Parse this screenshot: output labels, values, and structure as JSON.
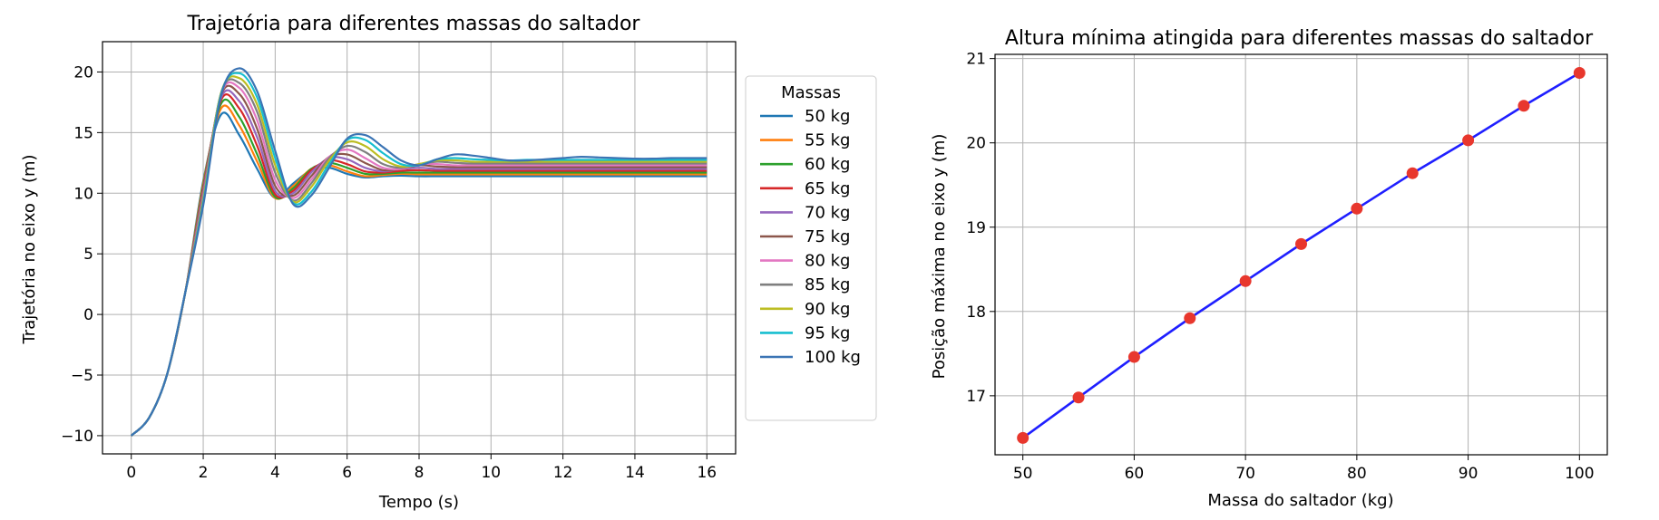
{
  "chart_data": [
    {
      "type": "line",
      "title": "Trajetória para diferentes massas do saltador",
      "xlabel": "Tempo (s)",
      "ylabel": "Trajetória  no eixo y (m)",
      "xlim": [
        -0.8,
        16.8
      ],
      "ylim": [
        -11.5,
        22.5
      ],
      "xticks": [
        0,
        2,
        4,
        6,
        8,
        10,
        12,
        14,
        16
      ],
      "yticks": [
        -10,
        -5,
        0,
        5,
        10,
        15,
        20
      ],
      "xtick_labels": [
        "0",
        "2",
        "4",
        "6",
        "8",
        "10",
        "12",
        "14",
        "16"
      ],
      "ytick_labels": [
        "−10",
        "−5",
        "0",
        "5",
        "10",
        "15",
        "20"
      ],
      "grid": true,
      "legend": {
        "title": "Massas",
        "placement": "outside-right"
      },
      "x": [
        0,
        0.5,
        1,
        1.5,
        2,
        2.5,
        3,
        3.5,
        4,
        4.5,
        5,
        5.5,
        6,
        6.5,
        7,
        7.5,
        8,
        8.5,
        9,
        9.5,
        10,
        10.5,
        11,
        11.5,
        12,
        12.5,
        13,
        13.5,
        14,
        14.5,
        15,
        15.5,
        16
      ],
      "series": [
        {
          "name": "50 kg",
          "color": "#1f77b4",
          "peak": 16.5,
          "peak_t": 2.45,
          "settle": 11.4,
          "values": [
            -10,
            -8.5,
            -4.9,
            1.8,
            11.0,
            16.5,
            14.8,
            12.0,
            9.6,
            10.8,
            11.9,
            12.1,
            11.6,
            11.3,
            11.4,
            11.45,
            11.4,
            11.4,
            11.4,
            11.4,
            11.4,
            11.4,
            11.4,
            11.4,
            11.4,
            11.4,
            11.4,
            11.4,
            11.4,
            11.4,
            11.4,
            11.4,
            11.4
          ]
        },
        {
          "name": "55 kg",
          "color": "#ff7f0e",
          "peak": 17.0,
          "peak_t": 2.5,
          "settle": 11.55,
          "values": [
            -10,
            -8.5,
            -4.9,
            1.8,
            10.8,
            17.0,
            15.6,
            12.6,
            9.6,
            10.6,
            12.0,
            12.3,
            11.8,
            11.4,
            11.5,
            11.6,
            11.55,
            11.55,
            11.55,
            11.55,
            11.55,
            11.55,
            11.55,
            11.55,
            11.55,
            11.55,
            11.55,
            11.55,
            11.55,
            11.55,
            11.55,
            11.55,
            11.55
          ]
        },
        {
          "name": "60 kg",
          "color": "#2ca02c",
          "peak": 17.5,
          "peak_t": 2.55,
          "settle": 11.7,
          "values": [
            -10,
            -8.5,
            -4.9,
            1.8,
            10.6,
            17.4,
            16.3,
            13.2,
            9.7,
            10.4,
            12.0,
            12.5,
            12.1,
            11.6,
            11.6,
            11.7,
            11.7,
            11.7,
            11.7,
            11.7,
            11.7,
            11.7,
            11.7,
            11.7,
            11.7,
            11.7,
            11.7,
            11.7,
            11.7,
            11.7,
            11.7,
            11.7,
            11.7
          ]
        },
        {
          "name": "65 kg",
          "color": "#d62728",
          "peak": 17.9,
          "peak_t": 2.6,
          "settle": 11.85,
          "values": [
            -10,
            -8.5,
            -4.9,
            1.8,
            10.4,
            17.7,
            17.0,
            13.9,
            9.9,
            10.2,
            11.9,
            12.7,
            12.4,
            11.8,
            11.7,
            11.85,
            11.9,
            11.85,
            11.85,
            11.85,
            11.85,
            11.85,
            11.85,
            11.85,
            11.85,
            11.85,
            11.85,
            11.85,
            11.85,
            11.85,
            11.85,
            11.85,
            11.85
          ]
        },
        {
          "name": "70 kg",
          "color": "#9467bd",
          "peak": 18.4,
          "peak_t": 2.65,
          "settle": 12.0,
          "values": [
            -10,
            -8.5,
            -4.9,
            1.8,
            10.2,
            17.9,
            17.6,
            14.6,
            10.2,
            10.0,
            11.7,
            12.9,
            12.8,
            12.1,
            11.8,
            12.0,
            12.1,
            12.0,
            12.0,
            12.0,
            12.0,
            12.0,
            12.0,
            12.0,
            12.0,
            12.0,
            12.0,
            12.0,
            12.0,
            12.0,
            12.0,
            12.0,
            12.0
          ]
        },
        {
          "name": "75 kg",
          "color": "#8c564b",
          "peak": 18.8,
          "peak_t": 2.7,
          "settle": 12.15,
          "values": [
            -10,
            -8.5,
            -4.9,
            1.8,
            10.0,
            18.1,
            18.2,
            15.3,
            10.6,
            9.8,
            11.4,
            13.0,
            13.2,
            12.5,
            11.9,
            12.0,
            12.3,
            12.2,
            12.15,
            12.15,
            12.15,
            12.15,
            12.15,
            12.15,
            12.15,
            12.15,
            12.15,
            12.15,
            12.15,
            12.15,
            12.15,
            12.15,
            12.15
          ]
        },
        {
          "name": "80 kg",
          "color": "#e377c2",
          "peak": 19.2,
          "peak_t": 2.75,
          "settle": 12.3,
          "values": [
            -10,
            -8.5,
            -4.9,
            1.8,
            9.8,
            18.2,
            18.7,
            16.0,
            11.1,
            9.6,
            11.1,
            13.0,
            13.6,
            12.9,
            12.1,
            12.0,
            12.4,
            12.4,
            12.3,
            12.3,
            12.3,
            12.3,
            12.3,
            12.3,
            12.3,
            12.3,
            12.3,
            12.3,
            12.3,
            12.3,
            12.3,
            12.3,
            12.3
          ]
        },
        {
          "name": "85 kg",
          "color": "#7f7f7f",
          "peak": 19.6,
          "peak_t": 2.8,
          "settle": 12.45,
          "values": [
            -10,
            -8.5,
            -4.9,
            1.8,
            9.6,
            18.3,
            19.1,
            16.7,
            11.7,
            9.4,
            10.8,
            12.9,
            13.9,
            13.4,
            12.4,
            12.1,
            12.4,
            12.6,
            12.5,
            12.45,
            12.45,
            12.45,
            12.45,
            12.45,
            12.45,
            12.45,
            12.45,
            12.45,
            12.45,
            12.45,
            12.45,
            12.45,
            12.45
          ]
        },
        {
          "name": "90 kg",
          "color": "#bcbd22",
          "peak": 20.0,
          "peak_t": 2.8,
          "settle": 12.6,
          "values": [
            -10,
            -8.5,
            -4.9,
            1.8,
            9.4,
            18.3,
            19.5,
            17.3,
            12.3,
            9.3,
            10.5,
            12.7,
            14.2,
            13.9,
            12.8,
            12.2,
            12.4,
            12.7,
            12.7,
            12.6,
            12.6,
            12.6,
            12.6,
            12.6,
            12.6,
            12.6,
            12.6,
            12.6,
            12.6,
            12.6,
            12.6,
            12.6,
            12.6
          ]
        },
        {
          "name": "95 kg",
          "color": "#17becf",
          "peak": 20.4,
          "peak_t": 2.85,
          "settle": 12.75,
          "values": [
            -10,
            -8.5,
            -4.9,
            1.8,
            9.2,
            18.2,
            19.9,
            17.9,
            12.9,
            9.2,
            10.1,
            12.4,
            14.4,
            14.4,
            13.3,
            12.4,
            12.3,
            12.8,
            12.9,
            12.8,
            12.75,
            12.7,
            12.75,
            12.75,
            12.75,
            12.75,
            12.75,
            12.75,
            12.75,
            12.75,
            12.75,
            12.75,
            12.75
          ]
        },
        {
          "name": "100 kg",
          "color": "#3b74b4",
          "peak": 20.8,
          "peak_t": 2.85,
          "settle": 12.9,
          "values": [
            -10,
            -8.5,
            -4.9,
            1.8,
            9.0,
            18.1,
            20.3,
            18.4,
            13.5,
            9.1,
            9.8,
            12.1,
            14.5,
            14.8,
            13.8,
            12.7,
            12.3,
            12.8,
            13.2,
            13.1,
            12.9,
            12.7,
            12.7,
            12.8,
            12.9,
            13.0,
            12.95,
            12.9,
            12.85,
            12.85,
            12.9,
            12.9,
            12.9
          ]
        }
      ]
    },
    {
      "type": "line",
      "title": "Altura mínima atingida para diferentes massas do saltador",
      "xlabel": "Massa do saltador (kg)",
      "ylabel": "Posição máxima no eixo y (m)",
      "xlim": [
        47.5,
        102.5
      ],
      "ylim": [
        16.3,
        21.05
      ],
      "xticks": [
        50,
        60,
        70,
        80,
        90,
        100
      ],
      "yticks": [
        17,
        18,
        19,
        20,
        21
      ],
      "xtick_labels": [
        "50",
        "60",
        "70",
        "80",
        "90",
        "100"
      ],
      "ytick_labels": [
        "17",
        "18",
        "19",
        "20",
        "21"
      ],
      "grid": true,
      "line_color": "#1f1fff",
      "marker_color": "#e8372d",
      "x": [
        50,
        55,
        60,
        65,
        70,
        75,
        80,
        85,
        90,
        95,
        100
      ],
      "y": [
        16.5,
        16.98,
        17.46,
        17.92,
        18.36,
        18.8,
        19.22,
        19.64,
        20.03,
        20.44,
        20.83
      ]
    }
  ]
}
